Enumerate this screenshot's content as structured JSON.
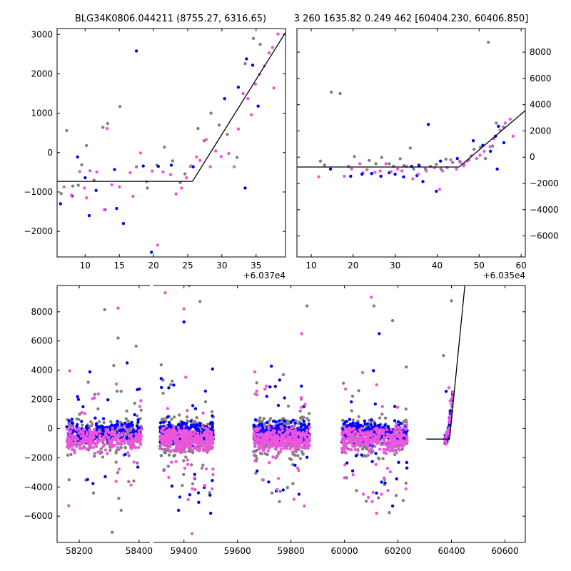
{
  "colors": {
    "gray": "#808080",
    "blue": "#0000ff",
    "pink": "#ee55dd",
    "model": "#000000"
  },
  "chart_data": [
    {
      "type": "scatter",
      "name": "zoom-left",
      "title": "BLG34K0806.044211 (8755.27, 6316.65)",
      "xlim": [
        5.9,
        39.3
      ],
      "ylim": [
        -2650,
        3150
      ],
      "xticks": [
        10,
        15,
        20,
        25,
        30,
        35
      ],
      "yticks": [
        -2000,
        -1000,
        0,
        1000,
        2000,
        3000
      ],
      "xoffset_label": "+6.037e4",
      "model_line": [
        [
          5.9,
          -730
        ],
        [
          25.7,
          -730
        ],
        [
          39.3,
          3050
        ]
      ],
      "series": [
        {
          "color": "gray",
          "points": [
            [
              6.5,
              -1040
            ],
            [
              7.3,
              560
            ],
            [
              8.2,
              -850
            ],
            [
              9.0,
              -830
            ],
            [
              9.5,
              -310
            ],
            [
              10.2,
              180
            ],
            [
              11.3,
              -700
            ],
            [
              12.6,
              640
            ],
            [
              13.3,
              740
            ],
            [
              15.1,
              1170
            ],
            [
              17.5,
              -360
            ],
            [
              19.1,
              -900
            ],
            [
              20.5,
              -320
            ],
            [
              21.6,
              140
            ],
            [
              22.8,
              -210
            ],
            [
              23.9,
              -760
            ],
            [
              24.6,
              -540
            ],
            [
              25.5,
              -340
            ],
            [
              26.5,
              610
            ],
            [
              27.4,
              300
            ],
            [
              28.4,
              1000
            ],
            [
              29.6,
              700
            ],
            [
              30.8,
              460
            ],
            [
              32.2,
              -120
            ],
            [
              33.4,
              2260
            ],
            [
              34.6,
              2900
            ],
            [
              35.6,
              2750
            ]
          ]
        },
        {
          "color": "blue",
          "points": [
            [
              6.4,
              -1300
            ],
            [
              8.1,
              -1100
            ],
            [
              8.9,
              -110
            ],
            [
              10.0,
              -640
            ],
            [
              10.6,
              -1600
            ],
            [
              11.6,
              -960
            ],
            [
              12.9,
              -1450
            ],
            [
              14.3,
              -430
            ],
            [
              14.6,
              -1420
            ],
            [
              15.6,
              -1800
            ],
            [
              17.5,
              2580
            ],
            [
              18.5,
              -340
            ],
            [
              19.7,
              -2530
            ],
            [
              20.7,
              -350
            ],
            [
              22.6,
              -320
            ],
            [
              25.8,
              -360
            ],
            [
              30.4,
              1370
            ],
            [
              32.4,
              1660
            ],
            [
              33.4,
              -900
            ],
            [
              33.6,
              2380
            ],
            [
              34.5,
              2220
            ],
            [
              35.3,
              1180
            ]
          ]
        },
        {
          "color": "pink",
          "points": [
            [
              6.9,
              -870
            ],
            [
              8.0,
              -1080
            ],
            [
              9.2,
              -480
            ],
            [
              9.9,
              -900
            ],
            [
              10.2,
              -1150
            ],
            [
              10.7,
              -460
            ],
            [
              11.7,
              -490
            ],
            [
              12.8,
              -1450
            ],
            [
              13.2,
              610
            ],
            [
              13.9,
              -820
            ],
            [
              15.0,
              -870
            ],
            [
              16.6,
              -510
            ],
            [
              17.0,
              -1110
            ],
            [
              18.1,
              -10
            ],
            [
              19.0,
              -740
            ],
            [
              19.8,
              -470
            ],
            [
              20.6,
              -2350
            ],
            [
              21.4,
              -490
            ],
            [
              22.5,
              -560
            ],
            [
              23.3,
              -1050
            ],
            [
              24.1,
              -900
            ],
            [
              24.8,
              -640
            ],
            [
              25.4,
              -350
            ],
            [
              26.3,
              -110
            ],
            [
              26.8,
              -200
            ],
            [
              27.7,
              330
            ],
            [
              28.3,
              -360
            ],
            [
              29.1,
              40
            ],
            [
              29.9,
              -100
            ],
            [
              31.0,
              -20
            ],
            [
              31.8,
              -360
            ],
            [
              32.4,
              600
            ],
            [
              33.1,
              1500
            ],
            [
              33.8,
              1370
            ],
            [
              34.3,
              960
            ],
            [
              34.9,
              1740
            ],
            [
              35.5,
              1990
            ],
            [
              36.2,
              2200
            ],
            [
              36.9,
              2530
            ],
            [
              37.6,
              1640
            ],
            [
              38.2,
              3010
            ],
            [
              37.4,
              2670
            ]
          ]
        }
      ]
    },
    {
      "type": "scatter",
      "name": "zoom-right",
      "title": "3 260 1635.82 0.249 462 [60404.230, 60406.850]",
      "xlim": [
        6.6,
        61.0
      ],
      "ylim": [
        -7600,
        9800
      ],
      "xticks": [
        10,
        20,
        30,
        40,
        50,
        60
      ],
      "yticks": [
        -6000,
        -4000,
        -2000,
        0,
        2000,
        4000,
        6000,
        8000
      ],
      "xoffset_label": "+6.035e4",
      "model_line": [
        [
          6.6,
          -750
        ],
        [
          45.2,
          -750
        ],
        [
          61.0,
          3550
        ]
      ],
      "series": [
        {
          "color": "gray",
          "points": [
            [
              12.2,
              -300
            ],
            [
              13.2,
              -600
            ],
            [
              14.8,
              4950
            ],
            [
              16.9,
              4850
            ],
            [
              18.9,
              -700
            ],
            [
              20.3,
              50
            ],
            [
              22.3,
              -1200
            ],
            [
              23.8,
              -250
            ],
            [
              25.4,
              -500
            ],
            [
              26.8,
              -20
            ],
            [
              28.6,
              -500
            ],
            [
              29.6,
              -700
            ],
            [
              31.2,
              -120
            ],
            [
              32.1,
              -650
            ],
            [
              33.6,
              700
            ],
            [
              34.4,
              -900
            ],
            [
              35.6,
              -580
            ],
            [
              37.2,
              -900
            ],
            [
              38.4,
              -700
            ],
            [
              39.8,
              -550
            ],
            [
              40.9,
              -900
            ],
            [
              42.1,
              -150
            ],
            [
              43.7,
              -400
            ],
            [
              45.4,
              -320
            ],
            [
              46.4,
              -550
            ],
            [
              47.6,
              -200
            ],
            [
              48.8,
              600
            ],
            [
              50.3,
              750
            ],
            [
              51.5,
              -100
            ],
            [
              52.2,
              8750
            ],
            [
              53.2,
              850
            ],
            [
              54.1,
              2600
            ],
            [
              55.8,
              2300
            ]
          ]
        },
        {
          "color": "blue",
          "points": [
            [
              14.6,
              -900
            ],
            [
              19.4,
              -1450
            ],
            [
              22.1,
              -1300
            ],
            [
              24.4,
              -1250
            ],
            [
              26.6,
              -1450
            ],
            [
              28.6,
              -1180
            ],
            [
              30.0,
              -1300
            ],
            [
              32.0,
              -1500
            ],
            [
              33.9,
              -700
            ],
            [
              35.2,
              -1400
            ],
            [
              35.7,
              -650
            ],
            [
              36.6,
              -1850
            ],
            [
              37.9,
              2500
            ],
            [
              39.8,
              -2600
            ],
            [
              40.8,
              -300
            ],
            [
              44.8,
              -100
            ],
            [
              48.6,
              1250
            ],
            [
              50.9,
              900
            ],
            [
              52.7,
              450
            ],
            [
              53.9,
              1600
            ],
            [
              54.3,
              -900
            ],
            [
              54.6,
              2350
            ],
            [
              55.9,
              1100
            ]
          ]
        },
        {
          "color": "pink",
          "points": [
            [
              11.8,
              -1500
            ],
            [
              17.9,
              -1450
            ],
            [
              19.6,
              -900
            ],
            [
              21.6,
              -500
            ],
            [
              23.3,
              -950
            ],
            [
              25.2,
              -1150
            ],
            [
              26.4,
              -1050
            ],
            [
              27.8,
              -500
            ],
            [
              29.0,
              -1100
            ],
            [
              30.6,
              -900
            ],
            [
              31.6,
              -1050
            ],
            [
              32.7,
              -700
            ],
            [
              34.2,
              -1650
            ],
            [
              35.5,
              -1300
            ],
            [
              37.4,
              -1050
            ],
            [
              39.4,
              -800
            ],
            [
              40.6,
              -2450
            ],
            [
              41.3,
              -1050
            ],
            [
              42.4,
              -800
            ],
            [
              43.2,
              -200
            ],
            [
              44.6,
              -900
            ],
            [
              45.6,
              -400
            ],
            [
              46.3,
              -650
            ],
            [
              47.2,
              -300
            ],
            [
              48.1,
              100
            ],
            [
              49.4,
              -100
            ],
            [
              50.2,
              150
            ],
            [
              51.2,
              450
            ],
            [
              52.6,
              800
            ],
            [
              53.5,
              1400
            ],
            [
              55.0,
              2050
            ],
            [
              56.2,
              2600
            ],
            [
              57.4,
              2900
            ],
            [
              58.1,
              1600
            ]
          ]
        }
      ]
    },
    {
      "type": "scatter",
      "name": "full-lightcurve",
      "title": "",
      "xlim": [
        58126,
        60676
      ],
      "ylim": [
        -7800,
        9800
      ],
      "xticks": [
        58200,
        58400,
        59400,
        59600,
        59800,
        60000,
        60200,
        60400,
        60600
      ],
      "yticks": [
        -6000,
        -4000,
        -2000,
        0,
        2000,
        4000,
        6000,
        8000
      ],
      "xoffset_label": "",
      "broken_axis": true,
      "model_line": [
        [
          60306,
          -720
        ],
        [
          60393,
          -720
        ],
        [
          60450,
          9800
        ]
      ],
      "seasons": [
        {
          "x0": 58158,
          "x1": 58408,
          "n": 210
        },
        {
          "x0": 59310,
          "x1": 59510,
          "n": 240
        },
        {
          "x0": 59660,
          "x1": 59870,
          "n": 240
        },
        {
          "x0": 59990,
          "x1": 60235,
          "n": 230
        }
      ],
      "outliers": [
        {
          "color": "gray",
          "points": [
            [
              58285,
              8150
            ],
            [
              58330,
              6200
            ],
            [
              58310,
              -7100
            ],
            [
              58340,
              -5600
            ],
            [
              58390,
              5650
            ],
            [
              59420,
              9800
            ],
            [
              59460,
              8700
            ],
            [
              59860,
              8400
            ],
            [
              60110,
              8400
            ],
            [
              60180,
              7400
            ],
            [
              60400,
              8750
            ],
            [
              60370,
              5000
            ]
          ]
        },
        {
          "color": "blue",
          "points": [
            [
              58360,
              4500
            ],
            [
              59400,
              7300
            ],
            [
              59380,
              -5600
            ],
            [
              59500,
              -5800
            ],
            [
              59830,
              -4500
            ],
            [
              60130,
              6500
            ],
            [
              60180,
              -5300
            ],
            [
              60380,
              2550
            ],
            [
              60395,
              1200
            ]
          ]
        },
        {
          "color": "pink",
          "points": [
            [
              58330,
              8250
            ],
            [
              59330,
              9300
            ],
            [
              59400,
              8200
            ],
            [
              59430,
              -7200
            ],
            [
              59840,
              6500
            ],
            [
              59850,
              -5300
            ],
            [
              60100,
              9000
            ],
            [
              60120,
              -5800
            ],
            [
              60390,
              2800
            ],
            [
              60395,
              1900
            ]
          ]
        }
      ]
    }
  ]
}
